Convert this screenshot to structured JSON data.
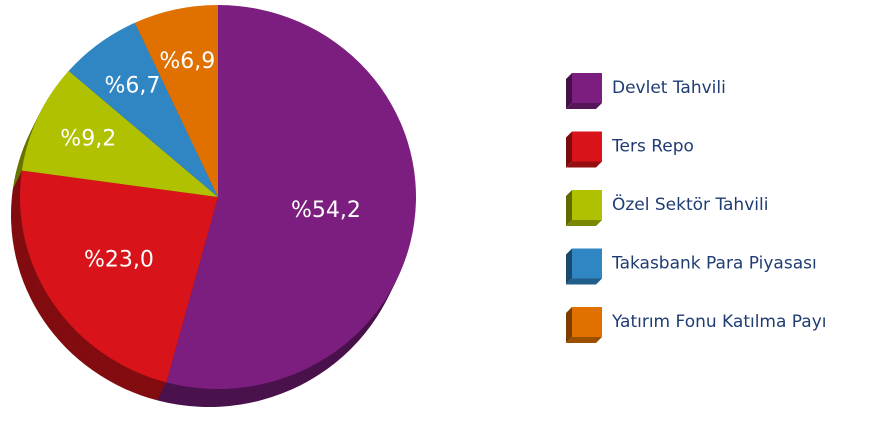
{
  "chart_data": {
    "type": "pie",
    "categories": [
      "Devlet Tahvili",
      "Ters Repo",
      "Özel Sektör Tahvili",
      "Takasbank Para Piyasası",
      "Yatırım Fonu Katılma Payı"
    ],
    "values": [
      54.2,
      23.0,
      9.2,
      6.7,
      6.9
    ],
    "value_labels": [
      "%54,2",
      "%23,0",
      "%9,2",
      "%6,7",
      "%6,9"
    ],
    "colors": [
      "#7b1e7f",
      "#d8141a",
      "#afc100",
      "#2f86c3",
      "#e07100"
    ],
    "legend": "right"
  }
}
